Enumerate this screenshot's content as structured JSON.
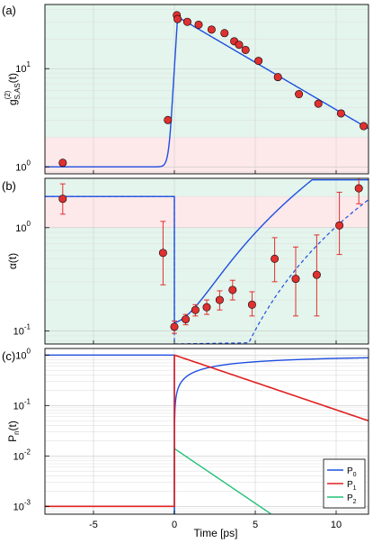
{
  "chart_data": [
    {
      "type": "scatter",
      "panel_label": "(a)",
      "ylabel": "g",
      "ylabel_sup": "(2)",
      "ylabel_sub": "S,AS",
      "ylabel_tail": "(t)",
      "yscale": "log",
      "xlim": [
        -8,
        12
      ],
      "ylim": [
        0.85,
        45
      ],
      "yticks": [
        {
          "v": 1,
          "base": "10",
          "exp": "0"
        },
        {
          "v": 10,
          "base": "10",
          "exp": "1"
        }
      ],
      "bands": [
        {
          "from": 2,
          "to": 45,
          "color": "#e3f5ec"
        },
        {
          "from": 0.85,
          "to": 2,
          "color": "#fde8ea"
        }
      ],
      "points": [
        {
          "x": -6.9,
          "y": 1.1
        },
        {
          "x": -0.4,
          "y": 3.0
        },
        {
          "x": 0.15,
          "y": 35.0
        },
        {
          "x": 0.2,
          "y": 32.0
        },
        {
          "x": 0.8,
          "y": 30.0
        },
        {
          "x": 1.5,
          "y": 28.0
        },
        {
          "x": 2.3,
          "y": 25.0
        },
        {
          "x": 3.1,
          "y": 23.0
        },
        {
          "x": 3.7,
          "y": 19.0
        },
        {
          "x": 4.0,
          "y": 17.5
        },
        {
          "x": 4.4,
          "y": 15.5
        },
        {
          "x": 5.2,
          "y": 12.0
        },
        {
          "x": 6.4,
          "y": 8.2
        },
        {
          "x": 7.7,
          "y": 5.5
        },
        {
          "x": 8.9,
          "y": 4.4
        },
        {
          "x": 10.3,
          "y": 3.5
        },
        {
          "x": 11.7,
          "y": 2.6
        }
      ],
      "fit_color": "#1f4fe0",
      "point_color": "#e03030"
    },
    {
      "type": "scatter",
      "panel_label": "(b)",
      "ylabel": "α(t)",
      "yscale": "log",
      "xlim": [
        -8,
        12
      ],
      "ylim": [
        0.075,
        3.0
      ],
      "yticks": [
        {
          "v": 0.1,
          "base": "10",
          "exp": "-1"
        },
        {
          "v": 1,
          "base": "10",
          "exp": "0"
        }
      ],
      "bands": [
        {
          "from": 2,
          "to": 3.0,
          "color": "#e3f5ec"
        },
        {
          "from": 1,
          "to": 2,
          "color": "#fde8ea"
        },
        {
          "from": 0.075,
          "to": 1,
          "color": "#e3f5ec"
        }
      ],
      "points": [
        {
          "x": -6.9,
          "y": 1.9,
          "lo": 1.35,
          "hi": 2.65
        },
        {
          "x": -0.7,
          "y": 0.57,
          "lo": 0.28,
          "hi": 1.15
        },
        {
          "x": 0.0,
          "y": 0.11,
          "lo": 0.095,
          "hi": 0.125
        },
        {
          "x": 0.7,
          "y": 0.13,
          "lo": 0.115,
          "hi": 0.145
        },
        {
          "x": 1.3,
          "y": 0.16,
          "lo": 0.14,
          "hi": 0.18
        },
        {
          "x": 2.0,
          "y": 0.17,
          "lo": 0.145,
          "hi": 0.2
        },
        {
          "x": 2.8,
          "y": 0.2,
          "lo": 0.16,
          "hi": 0.245
        },
        {
          "x": 3.6,
          "y": 0.25,
          "lo": 0.2,
          "hi": 0.31
        },
        {
          "x": 4.8,
          "y": 0.18,
          "lo": 0.14,
          "hi": 0.24
        },
        {
          "x": 6.2,
          "y": 0.5,
          "lo": 0.3,
          "hi": 0.8
        },
        {
          "x": 7.5,
          "y": 0.32,
          "lo": 0.14,
          "hi": 0.65
        },
        {
          "x": 8.8,
          "y": 0.35,
          "lo": 0.14,
          "hi": 0.85
        },
        {
          "x": 10.2,
          "y": 1.05,
          "lo": 0.55,
          "hi": 2.2
        },
        {
          "x": 11.4,
          "y": 2.4,
          "lo": 1.7,
          "hi": 3.0
        }
      ],
      "fit_color": "#1f4fe0",
      "point_color": "#e03030",
      "errbar_color": "#e03030"
    },
    {
      "type": "line",
      "panel_label": "(c)",
      "ylabel": "P",
      "ylabel_sub": "n",
      "ylabel_tail": "(t)",
      "xlabel": "Time [ps]",
      "yscale": "log",
      "xlim": [
        -8,
        12
      ],
      "ylim": [
        0.0007,
        1.35
      ],
      "xticks": [
        -5,
        0,
        5,
        10
      ],
      "yticks": [
        {
          "v": 0.001,
          "base": "10",
          "exp": "-3"
        },
        {
          "v": 0.01,
          "base": "10",
          "exp": "-2"
        },
        {
          "v": 0.1,
          "base": "10",
          "exp": "-1"
        },
        {
          "v": 1,
          "base": "10",
          "exp": "0"
        }
      ],
      "legend_position": "bottom-right",
      "series": [
        {
          "name": "P",
          "sub": "0",
          "color": "#1f4fe0"
        },
        {
          "name": "P",
          "sub": "1",
          "color": "#e02020"
        },
        {
          "name": "P",
          "sub": "2",
          "color": "#22c07a"
        }
      ]
    }
  ]
}
